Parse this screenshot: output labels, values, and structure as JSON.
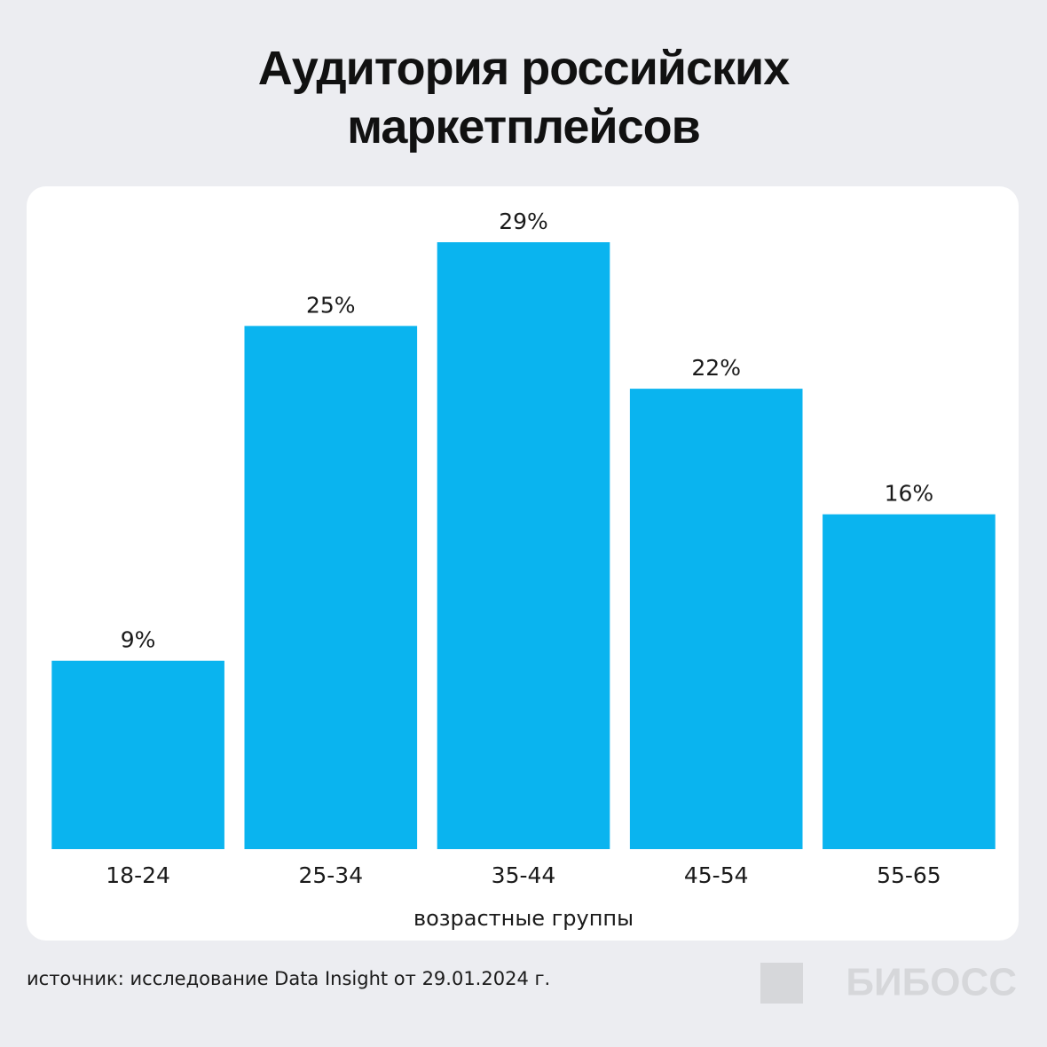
{
  "chart_data": {
    "type": "bar",
    "title": "Аудитория российских маркетплейсов",
    "categories": [
      "18-24",
      "25-34",
      "35-44",
      "45-54",
      "55-65"
    ],
    "values": [
      9,
      25,
      29,
      22,
      16
    ],
    "value_labels": [
      "9%",
      "25%",
      "29%",
      "22%",
      "16%"
    ],
    "color": "#0ab4ef",
    "xlabel": "возрастные группы",
    "source": "источник: исследование Data Insight от 29.01.2024 г.",
    "logo": "БИБОСС"
  }
}
